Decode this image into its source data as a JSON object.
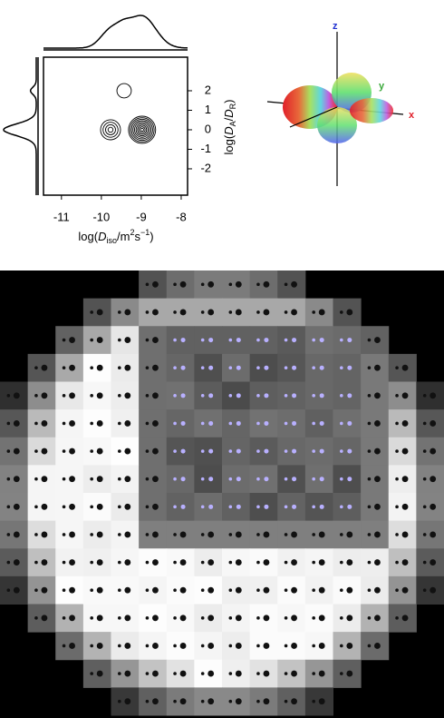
{
  "chart_data": {
    "type": "contour",
    "xlabel": [
      "log(",
      "D",
      "iso",
      "/m",
      "2",
      "s",
      "−1",
      ")"
    ],
    "ylabel": [
      "log(",
      "D",
      "A",
      "/",
      "D",
      "R",
      ")"
    ],
    "xlim": [
      -11.45,
      -7.84
    ],
    "ylim": [
      -3.35,
      3.72
    ],
    "xticks": [
      -11,
      -10,
      -9,
      -8
    ],
    "yticks": [
      -2,
      -1,
      0,
      1,
      2
    ],
    "components": [
      {
        "x": -9.77,
        "y": 0,
        "r": 0.25,
        "weight": 0.3
      },
      {
        "x": -8.98,
        "y": 0,
        "r": 0.34,
        "weight": 0.55
      },
      {
        "x": -9.43,
        "y": 2,
        "r": 0.18,
        "weight": 0.15
      }
    ]
  },
  "glyph": {
    "axes": [
      "x",
      "y",
      "z"
    ]
  }
}
